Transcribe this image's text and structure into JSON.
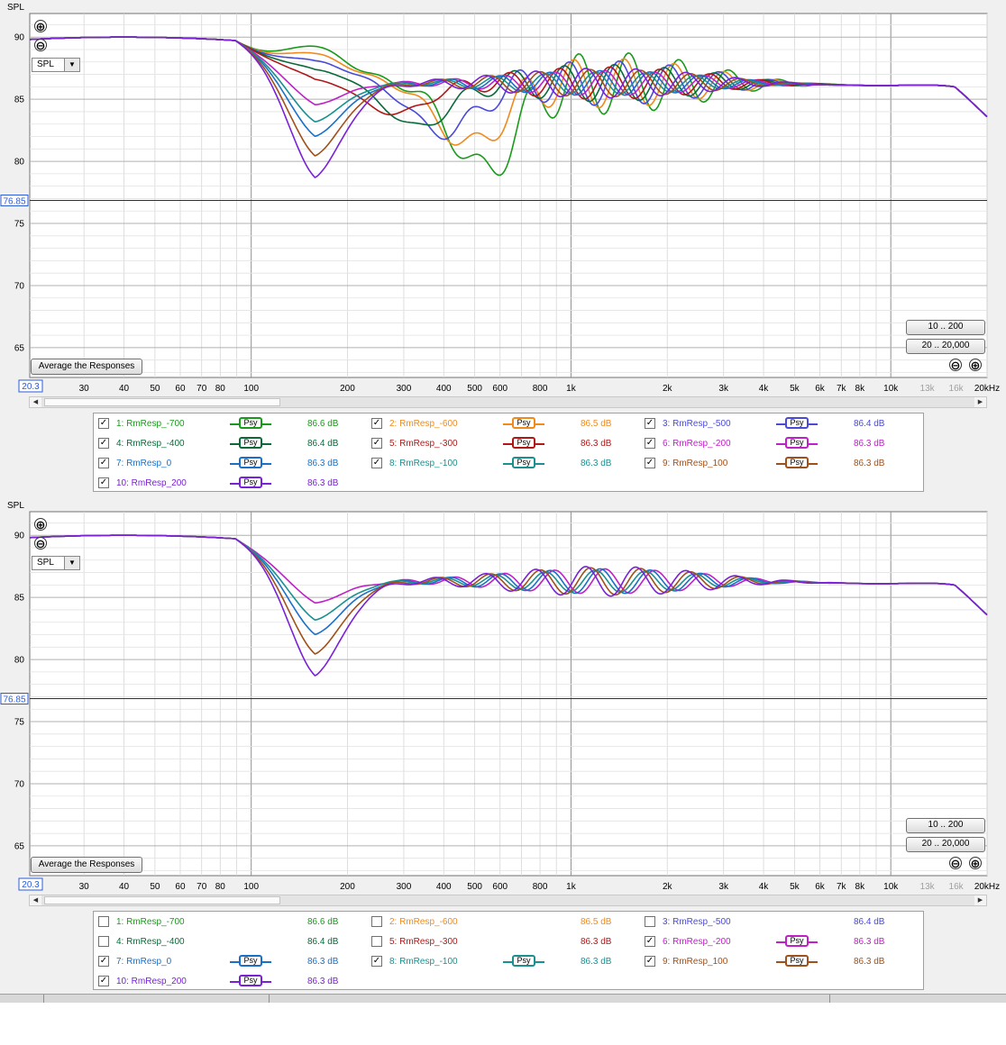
{
  "axis": {
    "y_title": "SPL",
    "y_ticks": [
      90,
      85,
      80,
      75,
      70,
      65
    ],
    "x_ticks": [
      {
        "f": 30,
        "label": "30",
        "faint": false
      },
      {
        "f": 40,
        "label": "40",
        "faint": false
      },
      {
        "f": 50,
        "label": "50",
        "faint": false
      },
      {
        "f": 60,
        "label": "60",
        "faint": false
      },
      {
        "f": 70,
        "label": "70",
        "faint": false
      },
      {
        "f": 80,
        "label": "80",
        "faint": false
      },
      {
        "f": 100,
        "label": "100",
        "faint": false
      },
      {
        "f": 200,
        "label": "200",
        "faint": false
      },
      {
        "f": 300,
        "label": "300",
        "faint": false
      },
      {
        "f": 400,
        "label": "400",
        "faint": false
      },
      {
        "f": 500,
        "label": "500",
        "faint": false
      },
      {
        "f": 600,
        "label": "600",
        "faint": false
      },
      {
        "f": 800,
        "label": "800",
        "faint": false
      },
      {
        "f": 1000,
        "label": "1k",
        "faint": false
      },
      {
        "f": 2000,
        "label": "2k",
        "faint": false
      },
      {
        "f": 3000,
        "label": "3k",
        "faint": false
      },
      {
        "f": 4000,
        "label": "4k",
        "faint": false
      },
      {
        "f": 5000,
        "label": "5k",
        "faint": false
      },
      {
        "f": 6000,
        "label": "6k",
        "faint": false
      },
      {
        "f": 7000,
        "label": "7k",
        "faint": false
      },
      {
        "f": 8000,
        "label": "8k",
        "faint": false
      },
      {
        "f": 10000,
        "label": "10k",
        "faint": false
      },
      {
        "f": 13000,
        "label": "13k",
        "faint": true
      },
      {
        "f": 16000,
        "label": "16k",
        "faint": true
      },
      {
        "f": 20000,
        "label": "20kHz",
        "faint": false
      }
    ],
    "xlim": [
      20.3,
      20000
    ],
    "ylim": [
      62.6,
      91.9
    ],
    "cursor_y": "76.85",
    "cursor_y_value": 76.85,
    "cursor_x": "20.3",
    "log_x": true
  },
  "controls": {
    "zoom_in": "⊕",
    "zoom_out": "⊖",
    "select_value": "SPL",
    "dropdown_arrow": "▼",
    "average_button": "Average the Responses",
    "range_10_200": "10 .. 200",
    "range_20_20000": "20 .. 20,000",
    "scroll_left": "◀",
    "scroll_right": "▶"
  },
  "psy_label": "Psy",
  "check_mark": "✓",
  "measurements": [
    {
      "name": "1: RmResp_-700",
      "db": "86.6 dB",
      "color": "#1a9a1a"
    },
    {
      "name": "2: RmResp_-600",
      "db": "86.5 dB",
      "color": "#f08a1c"
    },
    {
      "name": "3: RmResp_-500",
      "db": "86.4 dB",
      "color": "#4a4ad8"
    },
    {
      "name": "4: RmResp_-400",
      "db": "86.4 dB",
      "color": "#0a6a3a"
    },
    {
      "name": "5: RmResp_-300",
      "db": "86.3 dB",
      "color": "#b01818"
    },
    {
      "name": "6: RmResp_-200",
      "db": "86.3 dB",
      "color": "#c020c8"
    },
    {
      "name": "7: RmResp_0",
      "db": "86.3 dB",
      "color": "#1a70c8"
    },
    {
      "name": "8: RmResp_-100",
      "db": "86.3 dB",
      "color": "#1a9090"
    },
    {
      "name": "9: RmResp_100",
      "db": "86.3 dB",
      "color": "#a0501a"
    },
    {
      "name": "10: RmResp_200",
      "db": "86.3 dB",
      "color": "#7a20d8"
    }
  ],
  "panels": [
    {
      "visible": [
        true,
        true,
        true,
        true,
        true,
        true,
        true,
        true,
        true,
        true
      ]
    },
    {
      "visible": [
        false,
        false,
        false,
        false,
        false,
        true,
        true,
        true,
        true,
        true
      ]
    }
  ],
  "chart_data": {
    "type": "line",
    "title": "",
    "xlabel": "",
    "ylabel": "SPL",
    "x_scale": "log",
    "xlim": [
      20.3,
      20000
    ],
    "ylim": [
      62.6,
      91.9
    ],
    "grid": true,
    "series": [
      {
        "name": "1: RmResp_-700",
        "color": "#1a9a1a",
        "lf_dip_hz": 530,
        "lf_dip_db": 7.0,
        "peak_db": 3.0,
        "ripple_db": 2.5,
        "shift": 0.0
      },
      {
        "name": "2: RmResp_-600",
        "color": "#f08a1c",
        "lf_dip_hz": 480,
        "lf_dip_db": 5.0,
        "peak_db": 2.4,
        "ripple_db": 2.0,
        "shift": 0.6
      },
      {
        "name": "3: RmResp_-500",
        "color": "#4a4ad8",
        "lf_dip_hz": 400,
        "lf_dip_db": 4.0,
        "peak_db": 1.8,
        "ripple_db": 1.8,
        "shift": 1.2
      },
      {
        "name": "4: RmResp_-400",
        "color": "#0a6a3a",
        "lf_dip_hz": 330,
        "lf_dip_db": 3.5,
        "peak_db": 1.1,
        "ripple_db": 1.5,
        "shift": 1.8
      },
      {
        "name": "5: RmResp_-300",
        "color": "#b01818",
        "lf_dip_hz": 280,
        "lf_dip_db": 2.5,
        "peak_db": 0.4,
        "ripple_db": 1.3,
        "shift": 2.4
      },
      {
        "name": "6: RmResp_-200",
        "color": "#c020c8",
        "lf_dip_hz": 150,
        "lf_dip_db": 1.5,
        "peak_db": -0.3,
        "ripple_db": 1.0,
        "shift": 3.0
      },
      {
        "name": "7: RmResp_0",
        "color": "#1a70c8",
        "lf_dip_hz": 150,
        "lf_dip_db": 3.4,
        "peak_db": -1.0,
        "ripple_db": 1.0,
        "shift": 3.6
      },
      {
        "name": "8: RmResp_-100",
        "color": "#1a9090",
        "lf_dip_hz": 150,
        "lf_dip_db": 2.6,
        "peak_db": -0.6,
        "ripple_db": 0.9,
        "shift": 4.2
      },
      {
        "name": "9: RmResp_100",
        "color": "#a0501a",
        "lf_dip_hz": 150,
        "lf_dip_db": 4.5,
        "peak_db": -1.5,
        "ripple_db": 1.1,
        "shift": 4.8
      },
      {
        "name": "10: RmResp_200",
        "color": "#7a20d8",
        "lf_dip_hz": 150,
        "lf_dip_db": 5.8,
        "peak_db": -2.0,
        "ripple_db": 1.2,
        "shift": 5.4
      }
    ]
  }
}
